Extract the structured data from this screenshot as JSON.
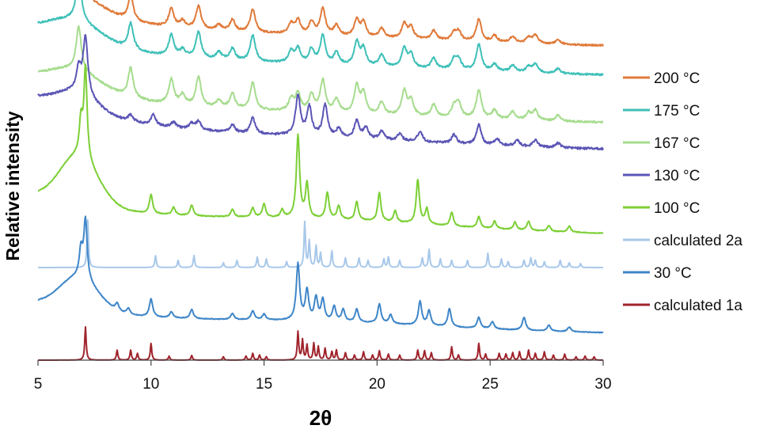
{
  "chart_data": {
    "type": "line",
    "xlabel": "2θ",
    "ylabel": "Relative intensity",
    "xlim": [
      5,
      30
    ],
    "x_ticks": [
      "5",
      "10",
      "15",
      "20",
      "25",
      "30"
    ],
    "y_ticks": "none",
    "grid": false,
    "legend_position": "right",
    "note": "Stacked powder X-ray diffraction patterns; traces vertically offset, intensities in relative units (0-100 per trace).",
    "series": [
      {
        "name": "200 °C",
        "color": "#e07a3a",
        "order": 0,
        "baseline": 95,
        "noise": 2.0,
        "width_scale": 1.6,
        "broad": [
          [
            6.6,
            40,
            1.2
          ],
          [
            17.5,
            14,
            7
          ]
        ],
        "peaks": [
          [
            6.8,
            100
          ],
          [
            9.1,
            55
          ],
          [
            10.9,
            40
          ],
          [
            11.4,
            15
          ],
          [
            12.1,
            50
          ],
          [
            13.0,
            12
          ],
          [
            13.6,
            25
          ],
          [
            14.5,
            50
          ],
          [
            16.2,
            22
          ],
          [
            16.5,
            30
          ],
          [
            17.1,
            28
          ],
          [
            17.6,
            58
          ],
          [
            18.2,
            22
          ],
          [
            19.1,
            36
          ],
          [
            19.4,
            30
          ],
          [
            20.2,
            20
          ],
          [
            21.2,
            32
          ],
          [
            21.5,
            25
          ],
          [
            22.5,
            20
          ],
          [
            23.4,
            15
          ],
          [
            23.6,
            20
          ],
          [
            24.5,
            48
          ],
          [
            25.2,
            14
          ],
          [
            26.0,
            14
          ],
          [
            26.7,
            12
          ],
          [
            27.0,
            18
          ],
          [
            28.0,
            10
          ]
        ]
      },
      {
        "name": "175 °C",
        "color": "#3ec0b8",
        "order": 1,
        "baseline": 92,
        "noise": 2.0,
        "width_scale": 1.6,
        "broad": [
          [
            6.6,
            45,
            1.2
          ],
          [
            17.5,
            14,
            7
          ]
        ],
        "peaks": [
          [
            6.8,
            100
          ],
          [
            9.1,
            55
          ],
          [
            10.9,
            45
          ],
          [
            11.4,
            15
          ],
          [
            12.1,
            55
          ],
          [
            13.0,
            15
          ],
          [
            13.6,
            25
          ],
          [
            14.5,
            55
          ],
          [
            16.2,
            25
          ],
          [
            16.5,
            30
          ],
          [
            17.1,
            30
          ],
          [
            17.6,
            60
          ],
          [
            18.2,
            25
          ],
          [
            19.1,
            48
          ],
          [
            19.4,
            35
          ],
          [
            20.2,
            25
          ],
          [
            21.2,
            40
          ],
          [
            21.5,
            28
          ],
          [
            22.5,
            22
          ],
          [
            23.4,
            20
          ],
          [
            23.6,
            22
          ],
          [
            24.5,
            55
          ],
          [
            25.2,
            15
          ],
          [
            26.0,
            14
          ],
          [
            26.7,
            12
          ],
          [
            27.0,
            18
          ],
          [
            28.0,
            10
          ]
        ]
      },
      {
        "name": "167 °C",
        "color": "#a6dc8e",
        "order": 2,
        "baseline": 88,
        "noise": 2.0,
        "width_scale": 1.6,
        "broad": [
          [
            6.6,
            40,
            1.2
          ],
          [
            17.5,
            12,
            7
          ]
        ],
        "peaks": [
          [
            6.8,
            90
          ],
          [
            9.1,
            60
          ],
          [
            10.9,
            50
          ],
          [
            11.4,
            20
          ],
          [
            12.1,
            60
          ],
          [
            13.0,
            15
          ],
          [
            13.6,
            30
          ],
          [
            14.5,
            55
          ],
          [
            16.2,
            25
          ],
          [
            16.5,
            35
          ],
          [
            17.1,
            35
          ],
          [
            17.6,
            65
          ],
          [
            18.2,
            28
          ],
          [
            19.1,
            55
          ],
          [
            19.4,
            40
          ],
          [
            20.2,
            25
          ],
          [
            21.2,
            50
          ],
          [
            21.5,
            30
          ],
          [
            22.5,
            25
          ],
          [
            23.4,
            20
          ],
          [
            23.6,
            30
          ],
          [
            24.5,
            58
          ],
          [
            25.2,
            18
          ],
          [
            26.0,
            16
          ],
          [
            26.7,
            14
          ],
          [
            27.0,
            20
          ],
          [
            28.0,
            12
          ]
        ]
      },
      {
        "name": "130 °C",
        "color": "#5b55b5",
        "order": 3,
        "baseline": 90,
        "noise": 2.0,
        "width_scale": 1.5,
        "broad": [
          [
            6.7,
            32,
            0.9
          ],
          [
            17.6,
            12,
            6
          ]
        ],
        "peaks": [
          [
            7.1,
            100
          ],
          [
            6.8,
            40
          ],
          [
            9.1,
            12
          ],
          [
            10.1,
            18
          ],
          [
            11.0,
            10
          ],
          [
            11.8,
            10
          ],
          [
            12.1,
            15
          ],
          [
            13.6,
            14
          ],
          [
            14.5,
            28
          ],
          [
            16.5,
            70
          ],
          [
            17.0,
            50
          ],
          [
            17.7,
            55
          ],
          [
            18.3,
            15
          ],
          [
            19.1,
            30
          ],
          [
            19.5,
            20
          ],
          [
            20.2,
            15
          ],
          [
            21.0,
            12
          ],
          [
            21.9,
            18
          ],
          [
            23.4,
            16
          ],
          [
            24.5,
            35
          ],
          [
            25.3,
            12
          ],
          [
            26.2,
            10
          ],
          [
            27.0,
            12
          ],
          [
            28.0,
            8
          ]
        ]
      },
      {
        "name": "100 °C",
        "color": "#7ccf35",
        "order": 4,
        "baseline": 50,
        "noise": 0.6,
        "width_scale": 1.0,
        "broad": [
          [
            6.8,
            65,
            0.85
          ],
          [
            17.5,
            15,
            6
          ]
        ],
        "peaks": [
          [
            7.1,
            120
          ],
          [
            6.9,
            45
          ],
          [
            10.0,
            25
          ],
          [
            11.0,
            10
          ],
          [
            11.8,
            14
          ],
          [
            13.6,
            10
          ],
          [
            14.5,
            12
          ],
          [
            15.0,
            18
          ],
          [
            15.8,
            10
          ],
          [
            16.5,
            110
          ],
          [
            16.9,
            45
          ],
          [
            17.8,
            35
          ],
          [
            18.3,
            18
          ],
          [
            19.1,
            25
          ],
          [
            20.1,
            38
          ],
          [
            20.8,
            15
          ],
          [
            21.8,
            58
          ],
          [
            22.2,
            20
          ],
          [
            23.3,
            18
          ],
          [
            24.5,
            15
          ],
          [
            25.2,
            10
          ],
          [
            26.1,
            10
          ],
          [
            26.7,
            12
          ],
          [
            27.6,
            8
          ],
          [
            28.5,
            8
          ]
        ]
      },
      {
        "name": "calculated 2a",
        "color": "#a8c8ea",
        "order": 5,
        "baseline": 0,
        "noise": 0,
        "width_scale": 0.45,
        "broad": [],
        "peaks": [
          [
            7.2,
            100
          ],
          [
            10.2,
            25
          ],
          [
            11.2,
            15
          ],
          [
            11.9,
            25
          ],
          [
            13.2,
            10
          ],
          [
            13.8,
            15
          ],
          [
            14.7,
            22
          ],
          [
            15.1,
            18
          ],
          [
            16.0,
            12
          ],
          [
            16.8,
            95
          ],
          [
            17.0,
            55
          ],
          [
            17.3,
            45
          ],
          [
            17.5,
            30
          ],
          [
            18.0,
            35
          ],
          [
            18.6,
            20
          ],
          [
            19.2,
            20
          ],
          [
            19.6,
            15
          ],
          [
            20.3,
            18
          ],
          [
            20.5,
            22
          ],
          [
            21.0,
            15
          ],
          [
            22.0,
            20
          ],
          [
            22.3,
            38
          ],
          [
            22.8,
            18
          ],
          [
            23.3,
            15
          ],
          [
            24.0,
            15
          ],
          [
            24.9,
            30
          ],
          [
            25.5,
            18
          ],
          [
            25.8,
            12
          ],
          [
            26.5,
            15
          ],
          [
            26.8,
            20
          ],
          [
            27.0,
            15
          ],
          [
            27.4,
            12
          ],
          [
            28.1,
            15
          ],
          [
            28.5,
            10
          ],
          [
            29.0,
            8
          ]
        ]
      },
      {
        "name": "30 °C",
        "color": "#3f86c8",
        "order": 6,
        "baseline": 50,
        "noise": 0.6,
        "width_scale": 1.05,
        "broad": [
          [
            6.8,
            55,
            0.85
          ],
          [
            17.4,
            15,
            6
          ]
        ],
        "peaks": [
          [
            7.1,
            100
          ],
          [
            6.9,
            45
          ],
          [
            8.5,
            12
          ],
          [
            9.0,
            10
          ],
          [
            10.0,
            30
          ],
          [
            10.9,
            10
          ],
          [
            11.8,
            15
          ],
          [
            13.6,
            10
          ],
          [
            14.5,
            15
          ],
          [
            15.0,
            10
          ],
          [
            16.5,
            95
          ],
          [
            16.9,
            50
          ],
          [
            17.3,
            38
          ],
          [
            17.6,
            35
          ],
          [
            18.1,
            25
          ],
          [
            18.5,
            20
          ],
          [
            19.1,
            22
          ],
          [
            20.1,
            32
          ],
          [
            20.6,
            15
          ],
          [
            21.9,
            40
          ],
          [
            22.3,
            25
          ],
          [
            23.2,
            30
          ],
          [
            24.5,
            18
          ],
          [
            25.1,
            12
          ],
          [
            26.5,
            22
          ],
          [
            27.6,
            10
          ],
          [
            28.5,
            8
          ]
        ]
      },
      {
        "name": "calculated 1a",
        "color": "#a0242c",
        "order": 7,
        "baseline": 0,
        "noise": 0,
        "width_scale": 0.45,
        "broad": [],
        "peaks": [
          [
            7.1,
            100
          ],
          [
            8.5,
            30
          ],
          [
            9.1,
            30
          ],
          [
            9.4,
            20
          ],
          [
            10.0,
            50
          ],
          [
            10.8,
            12
          ],
          [
            11.8,
            14
          ],
          [
            13.2,
            10
          ],
          [
            14.2,
            12
          ],
          [
            14.5,
            20
          ],
          [
            14.8,
            15
          ],
          [
            15.1,
            10
          ],
          [
            16.5,
            85
          ],
          [
            16.7,
            60
          ],
          [
            16.9,
            45
          ],
          [
            17.2,
            50
          ],
          [
            17.4,
            40
          ],
          [
            17.7,
            35
          ],
          [
            18.0,
            25
          ],
          [
            18.2,
            30
          ],
          [
            18.6,
            22
          ],
          [
            19.0,
            15
          ],
          [
            19.4,
            25
          ],
          [
            19.8,
            15
          ],
          [
            20.1,
            28
          ],
          [
            20.5,
            18
          ],
          [
            21.0,
            15
          ],
          [
            21.8,
            30
          ],
          [
            22.1,
            28
          ],
          [
            22.4,
            22
          ],
          [
            23.3,
            40
          ],
          [
            23.6,
            15
          ],
          [
            24.5,
            50
          ],
          [
            24.8,
            18
          ],
          [
            25.4,
            20
          ],
          [
            25.7,
            18
          ],
          [
            26.0,
            22
          ],
          [
            26.3,
            25
          ],
          [
            26.7,
            30
          ],
          [
            27.0,
            20
          ],
          [
            27.4,
            25
          ],
          [
            27.8,
            15
          ],
          [
            28.3,
            18
          ],
          [
            28.8,
            10
          ],
          [
            29.2,
            12
          ],
          [
            29.6,
            10
          ]
        ]
      }
    ]
  }
}
